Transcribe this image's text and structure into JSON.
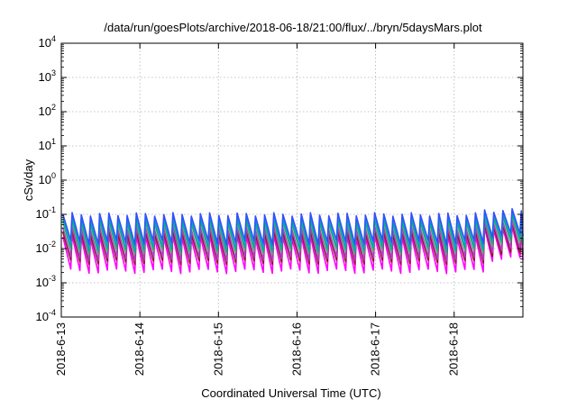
{
  "chart_data": {
    "type": "line",
    "title": "/data/run/goesPlots/archive/2018-06-18/21:00/flux/../bryn/5daysMars.plot",
    "xlabel": "Coordinated Universal Time (UTC)",
    "ylabel": "cSv/day",
    "x_tick_labels": [
      "2018-6-13",
      "2018-6-14",
      "2018-6-15",
      "2018-6-16",
      "2018-6-17",
      "2018-6-18"
    ],
    "y_tick_labels": [
      {
        "base": "10",
        "exp": "4"
      },
      {
        "base": "10",
        "exp": "3"
      },
      {
        "base": "10",
        "exp": "2"
      },
      {
        "base": "10",
        "exp": "1"
      },
      {
        "base": "10",
        "exp": "0"
      },
      {
        "base": "10",
        "exp": "-1"
      },
      {
        "base": "10",
        "exp": "-2"
      },
      {
        "base": "10",
        "exp": "-3"
      },
      {
        "base": "10",
        "exp": "-4"
      }
    ],
    "xlim": [
      "2018-06-13",
      "2018-06-18T21:00"
    ],
    "ylim": [
      0.0001,
      10000
    ],
    "yscale": "log",
    "grid": true,
    "pattern": {
      "period_hours": 2.8,
      "x_start": "2018-06-13T00:30",
      "x_end": "2018-06-18T21:00",
      "jump_at": "2018-06-18T08:00"
    },
    "series": [
      {
        "color": "#3050ff",
        "max": 0.1,
        "min": 0.015,
        "max_late": 0.13,
        "min_late": 0.025
      },
      {
        "color": "#00a8b0",
        "max": 0.075,
        "min": 0.01,
        "max_late": 0.1,
        "min_late": 0.018
      },
      {
        "color": "#30b060",
        "max": 0.06,
        "min": 0.008,
        "max_late": 0.085,
        "min_late": 0.014
      },
      {
        "color": "#b040c0",
        "max": 0.04,
        "min": 0.005,
        "max_late": 0.06,
        "min_late": 0.009
      },
      {
        "color": "#8b1a1a",
        "max": 0.03,
        "min": 0.004,
        "max_late": 0.05,
        "min_late": 0.007
      },
      {
        "color": "#ff00ff",
        "max": 0.022,
        "min": 0.0022,
        "max_late": 0.04,
        "min_late": 0.005
      }
    ]
  }
}
